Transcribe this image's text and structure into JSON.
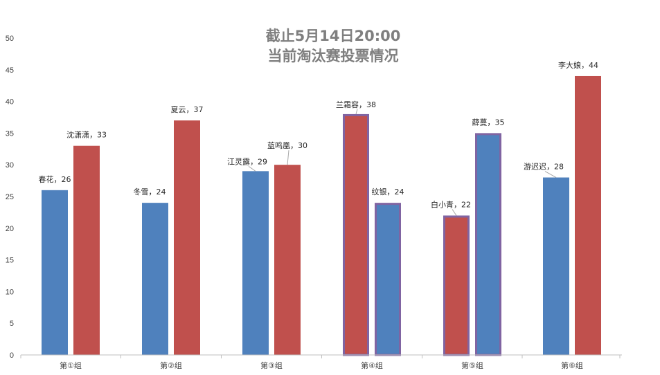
{
  "chart_data": {
    "type": "bar",
    "title_lines": [
      "截止5月14日20:00",
      "当前淘汰赛投票情况"
    ],
    "categories": [
      "第①组",
      "第②组",
      "第③组",
      "第④组",
      "第⑤组",
      "第⑥组"
    ],
    "ylim": [
      0,
      50
    ],
    "yticks": [
      0,
      5,
      10,
      15,
      20,
      25,
      30,
      35,
      40,
      45,
      50
    ],
    "grid": false,
    "legend": "none",
    "colors": {
      "blue": "#4f81bd",
      "red": "#c0504d",
      "highlight_border": "#8064a2",
      "axis": "#bfbfbf",
      "text": "#404040",
      "title": "#7f7f7f"
    },
    "bars": [
      {
        "group": 0,
        "slot": 0,
        "name": "春花",
        "value": 26,
        "color": "blue",
        "highlight": false,
        "label": "春花，26"
      },
      {
        "group": 0,
        "slot": 1,
        "name": "沈潇潇",
        "value": 33,
        "color": "red",
        "highlight": false,
        "label": "沈潇潇，33"
      },
      {
        "group": 1,
        "slot": 0,
        "name": "冬雪",
        "value": 24,
        "color": "blue",
        "highlight": false,
        "label": "冬雪，24"
      },
      {
        "group": 1,
        "slot": 1,
        "name": "夏云",
        "value": 37,
        "color": "red",
        "highlight": false,
        "label": "夏云，37"
      },
      {
        "group": 2,
        "slot": 0,
        "name": "江灵露",
        "value": 29,
        "color": "blue",
        "highlight": false,
        "label": "江灵露，29"
      },
      {
        "group": 2,
        "slot": 1,
        "name": "蓝鸣凰",
        "value": 30,
        "color": "red",
        "highlight": false,
        "label": "蓝鸣凰，30"
      },
      {
        "group": 3,
        "slot": 0,
        "name": "兰霜容",
        "value": 38,
        "color": "red",
        "highlight": true,
        "label": "兰霜容，38"
      },
      {
        "group": 3,
        "slot": 1,
        "name": "纹银",
        "value": 24,
        "color": "blue",
        "highlight": true,
        "label": "纹银，24"
      },
      {
        "group": 4,
        "slot": 0,
        "name": "白小青",
        "value": 22,
        "color": "red",
        "highlight": true,
        "label": "白小青，22"
      },
      {
        "group": 4,
        "slot": 1,
        "name": "薛蔓",
        "value": 35,
        "color": "blue",
        "highlight": true,
        "label": "薛蔓，35"
      },
      {
        "group": 5,
        "slot": 0,
        "name": "游迟迟",
        "value": 28,
        "color": "blue",
        "highlight": false,
        "label": "游迟迟，28"
      },
      {
        "group": 5,
        "slot": 1,
        "name": "李大娘",
        "value": 44,
        "color": "red",
        "highlight": false,
        "label": "李大娘，44"
      }
    ]
  }
}
